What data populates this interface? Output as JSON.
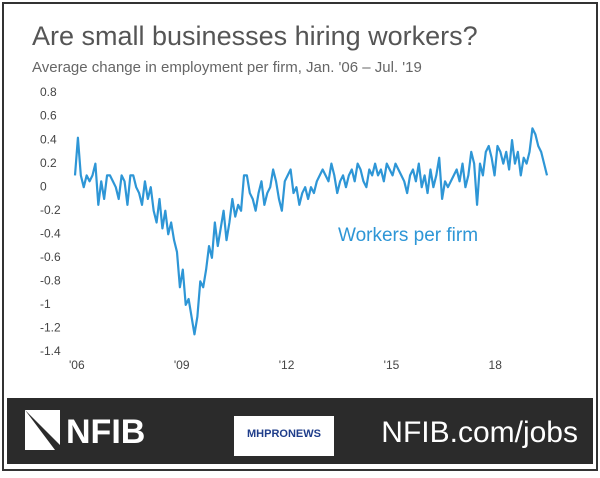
{
  "chart_data": {
    "type": "line",
    "title": "Are small businesses hiring workers?",
    "subtitle": "Average change in employment per firm, Jan. '06 – Jul. '19",
    "annotation": "Workers per firm",
    "series": [
      {
        "name": "Workers per firm",
        "color": "#2e96d6",
        "values": [
          0.1,
          0.42,
          0.1,
          0.0,
          0.1,
          0.05,
          0.1,
          0.2,
          -0.15,
          0.05,
          -0.1,
          0.1,
          0.1,
          0.05,
          0.0,
          -0.1,
          0.1,
          0.05,
          -0.15,
          0.1,
          0.1,
          0.0,
          -0.05,
          -0.15,
          0.05,
          -0.1,
          0.0,
          -0.2,
          -0.3,
          -0.1,
          -0.35,
          -0.2,
          -0.4,
          -0.3,
          -0.45,
          -0.55,
          -0.85,
          -0.7,
          -1.0,
          -0.95,
          -1.1,
          -1.25,
          -1.1,
          -0.8,
          -0.85,
          -0.7,
          -0.5,
          -0.6,
          -0.3,
          -0.5,
          -0.35,
          -0.2,
          -0.45,
          -0.3,
          -0.1,
          -0.25,
          -0.15,
          -0.2,
          0.1,
          0.1,
          -0.05,
          -0.1,
          -0.2,
          -0.05,
          0.05,
          -0.15,
          -0.05,
          0.0,
          0.15,
          0.05,
          -0.1,
          -0.2,
          0.05,
          0.1,
          0.15,
          -0.05,
          0.0,
          -0.15,
          -0.05,
          0.0,
          -0.1,
          0.0,
          -0.05,
          0.05,
          0.1,
          0.15,
          0.1,
          0.05,
          0.2,
          0.1,
          -0.05,
          0.05,
          0.1,
          0.0,
          0.1,
          0.15,
          0.05,
          0.2,
          0.15,
          0.05,
          0.0,
          0.15,
          0.1,
          0.2,
          0.1,
          0.15,
          0.05,
          0.2,
          0.15,
          0.1,
          0.2,
          0.15,
          0.1,
          0.05,
          -0.05,
          0.1,
          0.15,
          0.05,
          0.2,
          0.0,
          0.1,
          -0.05,
          0.15,
          0.0,
          0.1,
          0.25,
          -0.1,
          0.05,
          0.0,
          0.05,
          0.1,
          0.15,
          0.05,
          0.2,
          0.0,
          0.1,
          0.3,
          0.2,
          -0.15,
          0.2,
          0.1,
          0.3,
          0.35,
          0.25,
          0.1,
          0.35,
          0.3,
          0.2,
          0.3,
          0.15,
          0.4,
          0.2,
          0.3,
          0.1,
          0.25,
          0.2,
          0.3,
          0.5,
          0.45,
          0.35,
          0.3,
          0.2,
          0.1
        ]
      }
    ],
    "xlim": [
      0,
      162
    ],
    "xticks": [
      {
        "value": 0,
        "label": "'06"
      },
      {
        "value": 36,
        "label": "'09"
      },
      {
        "value": 72,
        "label": "'12"
      },
      {
        "value": 108,
        "label": "'15"
      },
      {
        "value": 144,
        "label": "18"
      }
    ],
    "ylim": [
      -1.4,
      0.8
    ],
    "yticks": [
      0.8,
      0.6,
      0.4,
      0.2,
      0,
      -0.2,
      -0.4,
      -0.6,
      -0.8,
      -1,
      -1.2,
      -1.4
    ],
    "grid": false
  },
  "footer": {
    "logo": "NFIB",
    "badge": "MHPRONEWS",
    "url": "NFIB.com/jobs"
  }
}
